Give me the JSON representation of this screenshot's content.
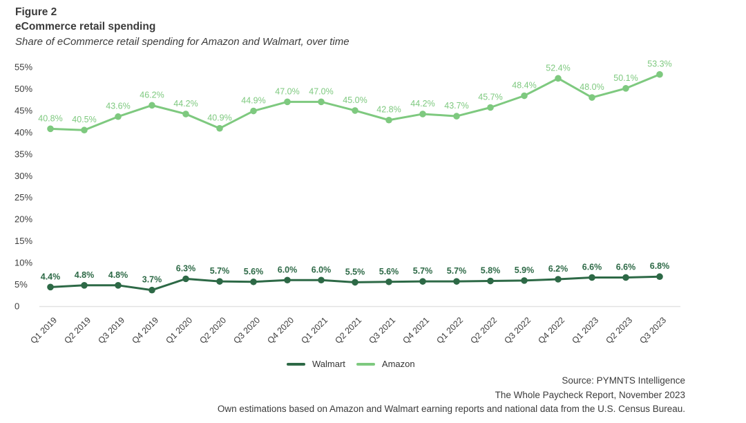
{
  "header": {
    "figure_label": "Figure 2",
    "title": "eCommerce retail spending",
    "subtitle": "Share of eCommerce retail spending for Amazon and Walmart, over time"
  },
  "legend": {
    "walmart": "Walmart",
    "amazon": "Amazon"
  },
  "source": {
    "line1": "Source: PYMNTS Intelligence",
    "line2": "The Whole Paycheck Report, November 2023",
    "line3": "Own estimations based on Amazon and Walmart earning reports and national data from the U.S. Census Bureau."
  },
  "colors": {
    "walmart": "#2d6946",
    "amazon": "#7ec97f",
    "axis_text": "#3d3d3d",
    "baseline": "#e2e2e2"
  },
  "chart_data": {
    "type": "line",
    "title": "eCommerce retail spending",
    "subtitle": "Share of eCommerce retail spending for Amazon and Walmart, over time",
    "categories": [
      "Q1 2019",
      "Q2 2019",
      "Q3 2019",
      "Q4 2019",
      "Q1 2020",
      "Q2 2020",
      "Q3 2020",
      "Q4 2020",
      "Q1 2021",
      "Q2 2021",
      "Q3 2021",
      "Q4 2021",
      "Q1 2022",
      "Q2 2022",
      "Q3 2022",
      "Q4 2022",
      "Q1 2023",
      "Q2 2023",
      "Q3 2023"
    ],
    "series": [
      {
        "name": "Walmart",
        "color_key": "walmart",
        "values": [
          4.4,
          4.8,
          4.8,
          3.7,
          6.3,
          5.7,
          5.6,
          6.0,
          6.0,
          5.5,
          5.6,
          5.7,
          5.7,
          5.8,
          5.9,
          6.2,
          6.6,
          6.6,
          6.8
        ]
      },
      {
        "name": "Amazon",
        "color_key": "amazon",
        "values": [
          40.8,
          40.5,
          43.6,
          46.2,
          44.2,
          40.9,
          44.9,
          47.0,
          47.0,
          45.0,
          42.8,
          44.2,
          43.7,
          45.7,
          48.4,
          52.4,
          48.0,
          50.1,
          53.3
        ]
      }
    ],
    "value_suffix": "%",
    "ylim": [
      0,
      55
    ],
    "ytick_step": 5,
    "grid": false,
    "legend_position": "bottom"
  }
}
